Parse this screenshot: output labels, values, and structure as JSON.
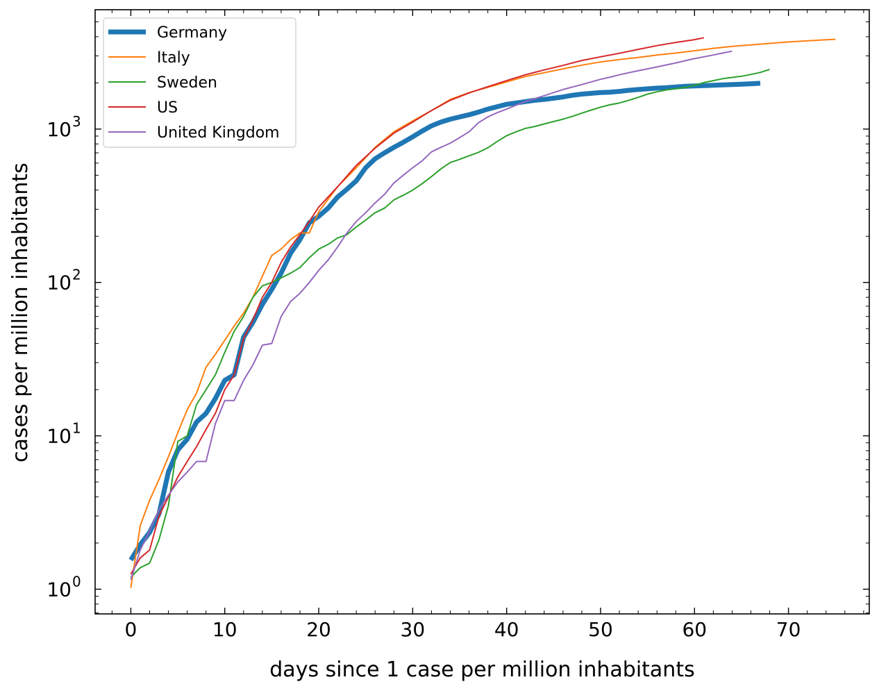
{
  "chart_data": {
    "type": "line",
    "title": "",
    "xlabel": "days since 1 case per million inhabitants",
    "ylabel": "cases per million inhabitants",
    "yscale": "log",
    "xlim": [
      -3.8,
      78.6
    ],
    "ylim": [
      0.69,
      6000
    ],
    "xticks": [
      0,
      10,
      20,
      30,
      40,
      50,
      60,
      70
    ],
    "xtick_labels": [
      "0",
      "10",
      "20",
      "30",
      "40",
      "50",
      "60",
      "70"
    ],
    "yticks": [
      1,
      10,
      100,
      1000
    ],
    "ytick_labels": [
      {
        "base": "10",
        "exp": "0"
      },
      {
        "base": "10",
        "exp": "1"
      },
      {
        "base": "10",
        "exp": "2"
      },
      {
        "base": "10",
        "exp": "3"
      }
    ],
    "grid": false,
    "legend_position": "upper-left",
    "series": [
      {
        "name": "Germany",
        "color": "#1f77b4",
        "width": 7,
        "x": [
          0,
          1,
          2,
          3,
          4,
          5,
          6,
          7,
          8,
          9,
          10,
          11,
          12,
          13,
          14,
          15,
          16,
          17,
          18,
          19,
          20,
          21,
          22,
          23,
          24,
          25,
          26,
          27,
          28,
          29,
          30,
          31,
          32,
          33,
          34,
          35,
          36,
          37,
          38,
          39,
          40,
          41,
          42,
          43,
          44,
          45,
          46,
          47,
          48,
          49,
          50,
          51,
          52,
          53,
          54,
          55,
          56,
          57,
          58,
          59,
          60,
          61,
          62,
          63,
          64,
          65,
          66,
          67
        ],
        "y": [
          1.55,
          1.95,
          2.35,
          3.1,
          5.8,
          8.1,
          9.5,
          12.3,
          14,
          17.5,
          23,
          25,
          44,
          55,
          72,
          90,
          115,
          155,
          190,
          245,
          270,
          305,
          360,
          405,
          460,
          560,
          640,
          700,
          760,
          820,
          890,
          970,
          1050,
          1110,
          1160,
          1200,
          1240,
          1290,
          1350,
          1400,
          1450,
          1480,
          1510,
          1540,
          1560,
          1590,
          1620,
          1660,
          1690,
          1710,
          1730,
          1740,
          1760,
          1790,
          1810,
          1830,
          1850,
          1860,
          1880,
          1900,
          1910,
          1920,
          1930,
          1940,
          1950,
          1960,
          1975,
          1990
        ]
      },
      {
        "name": "Italy",
        "color": "#ff7f0e",
        "width": 2,
        "x": [
          0,
          1,
          2,
          3,
          4,
          5,
          6,
          7,
          8,
          9,
          10,
          11,
          12,
          13,
          14,
          15,
          16,
          17,
          18,
          19,
          20,
          22,
          24,
          26,
          28,
          30,
          32,
          34,
          36,
          38,
          40,
          42,
          44,
          46,
          48,
          50,
          52,
          54,
          56,
          58,
          60,
          62,
          64,
          66,
          68,
          70,
          72,
          74,
          75
        ],
        "y": [
          1.02,
          2.6,
          3.8,
          5.2,
          7.3,
          10.5,
          14.8,
          19,
          28,
          34,
          42,
          52,
          63,
          80,
          110,
          150,
          165,
          190,
          210,
          210,
          290,
          420,
          560,
          760,
          960,
          1130,
          1320,
          1560,
          1730,
          1870,
          2030,
          2200,
          2330,
          2470,
          2610,
          2740,
          2840,
          2930,
          3040,
          3130,
          3240,
          3360,
          3460,
          3540,
          3620,
          3700,
          3760,
          3820,
          3850
        ]
      },
      {
        "name": "Sweden",
        "color": "#2ca02c",
        "width": 2,
        "x": [
          0,
          1,
          2,
          3,
          4,
          5,
          6,
          7,
          8,
          9,
          10,
          11,
          12,
          13,
          14,
          15,
          16,
          17,
          18,
          19,
          20,
          21,
          22,
          23,
          24,
          25,
          26,
          27,
          28,
          29,
          30,
          31,
          32,
          33,
          34,
          35,
          36,
          37,
          38,
          39,
          40,
          41,
          42,
          43,
          44,
          45,
          46,
          47,
          48,
          49,
          50,
          51,
          52,
          53,
          54,
          55,
          56,
          57,
          58,
          59,
          60,
          61,
          62,
          63,
          64,
          65,
          66,
          67,
          68
        ],
        "y": [
          1.2,
          1.38,
          1.48,
          2.1,
          3.5,
          9.2,
          10,
          16,
          20,
          25,
          35,
          48,
          60,
          80,
          95,
          100,
          107,
          115,
          125,
          145,
          165,
          177,
          195,
          205,
          230,
          255,
          285,
          305,
          345,
          370,
          400,
          440,
          490,
          550,
          605,
          635,
          670,
          705,
          755,
          830,
          905,
          960,
          1010,
          1040,
          1080,
          1120,
          1160,
          1210,
          1270,
          1330,
          1390,
          1440,
          1480,
          1540,
          1610,
          1690,
          1750,
          1800,
          1830,
          1870,
          1930,
          2010,
          2070,
          2130,
          2170,
          2210,
          2270,
          2340,
          2450
        ]
      },
      {
        "name": "US",
        "color": "#d62728",
        "width": 2,
        "x": [
          0,
          1,
          2,
          3,
          4,
          5,
          6,
          7,
          8,
          9,
          10,
          11,
          12,
          13,
          14,
          15,
          16,
          17,
          18,
          19,
          20,
          22,
          24,
          26,
          28,
          30,
          32,
          34,
          36,
          38,
          40,
          42,
          44,
          46,
          48,
          50,
          52,
          54,
          56,
          58,
          60,
          61
        ],
        "y": [
          1.25,
          1.6,
          1.8,
          3,
          4,
          5.4,
          6.8,
          8.5,
          11,
          14,
          20,
          25,
          43,
          57,
          80,
          100,
          135,
          170,
          205,
          250,
          310,
          420,
          580,
          750,
          940,
          1110,
          1320,
          1540,
          1720,
          1890,
          2070,
          2260,
          2430,
          2600,
          2800,
          2960,
          3120,
          3310,
          3500,
          3670,
          3830,
          3940
        ]
      },
      {
        "name": "United Kingdom",
        "color": "#9467bd",
        "width": 2,
        "x": [
          0,
          1,
          2,
          3,
          4,
          5,
          6,
          7,
          8,
          9,
          10,
          11,
          12,
          13,
          14,
          15,
          16,
          17,
          18,
          19,
          20,
          21,
          22,
          23,
          24,
          25,
          26,
          27,
          28,
          29,
          30,
          31,
          32,
          33,
          34,
          35,
          36,
          37,
          38,
          39,
          40,
          41,
          42,
          43,
          44,
          45,
          46,
          47,
          48,
          49,
          50,
          51,
          52,
          53,
          54,
          55,
          56,
          57,
          58,
          59,
          60,
          61,
          62,
          63,
          64
        ],
        "y": [
          1.15,
          1.8,
          2.4,
          3.3,
          4.1,
          5,
          5.8,
          6.8,
          6.8,
          12,
          17,
          17,
          23,
          29,
          39,
          40,
          60,
          75,
          85,
          100,
          120,
          140,
          170,
          210,
          250,
          285,
          330,
          375,
          445,
          500,
          560,
          620,
          710,
          760,
          810,
          880,
          960,
          1100,
          1200,
          1280,
          1350,
          1430,
          1510,
          1580,
          1650,
          1730,
          1810,
          1880,
          1950,
          2030,
          2110,
          2180,
          2260,
          2330,
          2400,
          2470,
          2540,
          2620,
          2700,
          2790,
          2880,
          2960,
          3040,
          3130,
          3220
        ]
      }
    ]
  }
}
